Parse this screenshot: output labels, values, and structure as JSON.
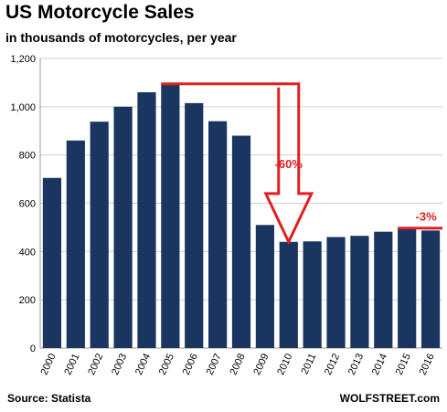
{
  "chart_data": {
    "type": "bar",
    "title": "US Motorcycle Sales",
    "subtitle": "in thousands of motorcycles, per year",
    "xlabel": "",
    "ylabel": "",
    "categories": [
      "2000",
      "2001",
      "2002",
      "2003",
      "2004",
      "2005",
      "2006",
      "2007",
      "2008",
      "2009",
      "2010",
      "2011",
      "2012",
      "2013",
      "2014",
      "2015",
      "2016"
    ],
    "values": [
      705,
      860,
      938,
      1000,
      1060,
      1095,
      1015,
      940,
      880,
      510,
      440,
      442,
      460,
      465,
      482,
      497,
      487
    ],
    "ylim": [
      0,
      1200
    ],
    "yticks": [
      0,
      200,
      400,
      600,
      800,
      "1,000",
      "1,200"
    ],
    "grid": true,
    "bar_color": "#1a3560",
    "annotations": [
      {
        "text": "-60%",
        "from": "2005",
        "to": "2010",
        "color": "#e0201f"
      },
      {
        "text": "-3%",
        "from": "2015",
        "to": "2016",
        "color": "#e0201f"
      }
    ]
  },
  "source": "Source: Statista",
  "watermark": "WOLFSTREET.com"
}
